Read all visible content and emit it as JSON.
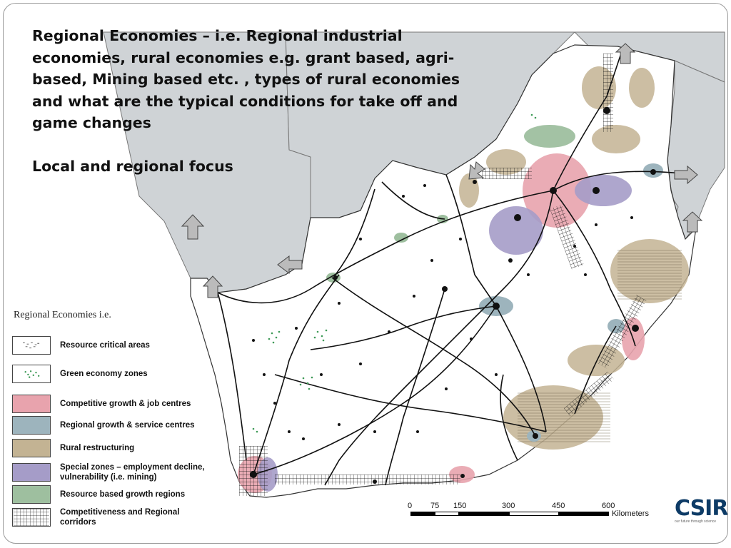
{
  "title_lines": [
    "Regional Economies – i.e. Regional industrial",
    "economies, rural economies  e.g. grant based, agri-",
    "based, Mining based etc. , types of rural economies",
    "and what are the typical conditions for take off and",
    "game changes"
  ],
  "focus_text": "Local and regional focus",
  "legend": {
    "heading": "Regional Economies i.e.",
    "items": [
      {
        "label": "Resource critical areas",
        "color": "#ffffff"
      },
      {
        "label": "Green economy zones",
        "color": "#ffffff"
      },
      {
        "label": "Competitive growth & job centres",
        "color": "#e8a3ad"
      },
      {
        "label": "Regional growth & service centres",
        "color": "#9db4bd"
      },
      {
        "label": "Rural restructuring",
        "color": "#c3b393"
      },
      {
        "label": "Special zones – employment decline, vulnerability (i.e. mining)",
        "color": "#a59cc8"
      },
      {
        "label": "Resource based growth regions",
        "color": "#9ebf9f"
      },
      {
        "label": "Competitiveness and Regional corridors",
        "color": "#ffffff"
      }
    ]
  },
  "scale_bar": {
    "ticks": [
      "0",
      "75",
      "150",
      "300",
      "450",
      "600"
    ],
    "unit": "Kilometers"
  },
  "colors": {
    "neighbour_countries": "#cfd3d6",
    "land": "#ffffff",
    "road": "#111111",
    "competitive": "#e8a3ad",
    "regional": "#9db4bd",
    "rural": "#c3b393",
    "special": "#a59cc8",
    "resource": "#9ebf9f"
  },
  "logo": {
    "text": "CSIR",
    "tagline": "our future through science"
  }
}
